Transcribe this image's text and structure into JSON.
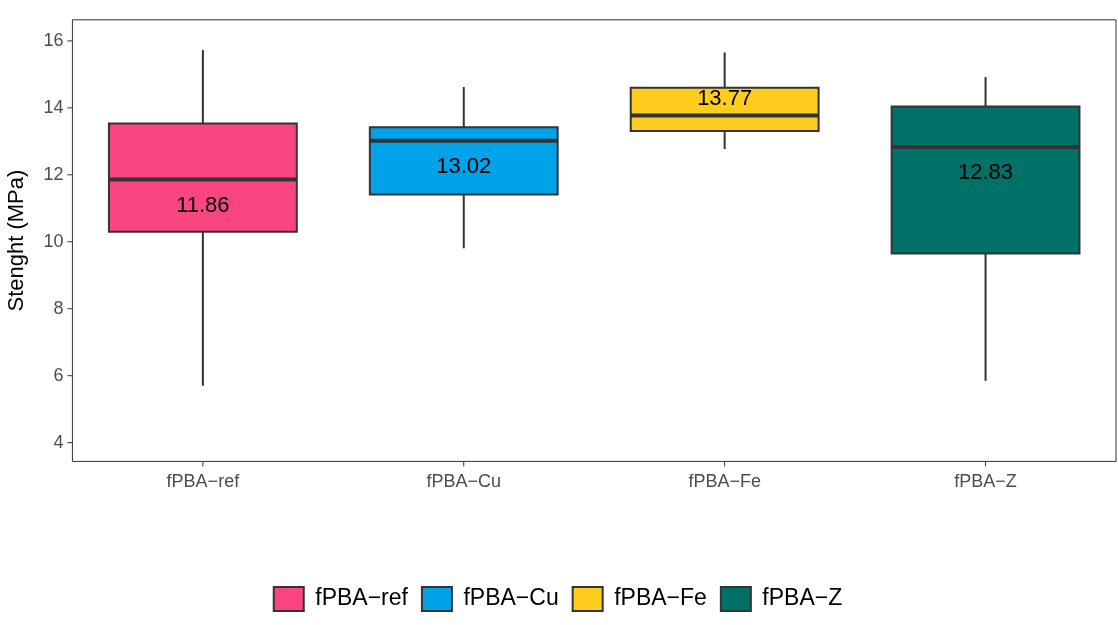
{
  "chart_data": {
    "type": "box",
    "ylabel": "Stenght (MPa)",
    "categories": [
      "fPBA−ref",
      "fPBA−Cu",
      "fPBA−Fe",
      "fPBA−Z"
    ],
    "series": [
      {
        "name": "fPBA−ref",
        "color": "#fa4680",
        "boxes": [
          {
            "low": 5.7,
            "q1": 10.3,
            "median": 11.86,
            "q3": 13.53,
            "high": 15.73
          },
          null,
          null,
          null
        ],
        "value_labels": [
          "11.86",
          null,
          null,
          null
        ]
      },
      {
        "name": "fPBA−Cu",
        "color": "#00a2e8",
        "boxes": [
          null,
          {
            "low": 9.81,
            "q1": 11.41,
            "median": 13.02,
            "q3": 13.42,
            "high": 14.62
          },
          null,
          null
        ],
        "value_labels": [
          null,
          "13.02",
          null,
          null
        ]
      },
      {
        "name": "fPBA−Fe",
        "color": "#ffcd1e",
        "boxes": [
          null,
          null,
          {
            "low": 12.77,
            "q1": 13.31,
            "median": 13.77,
            "q3": 14.6,
            "high": 15.65
          },
          null
        ],
        "value_labels": [
          null,
          null,
          "13.77",
          null
        ]
      },
      {
        "name": "fPBA−Z",
        "color": "#007166",
        "boxes": [
          null,
          null,
          null,
          {
            "low": 5.85,
            "q1": 9.65,
            "median": 12.83,
            "q3": 14.04,
            "high": 14.92
          }
        ],
        "value_labels": [
          null,
          null,
          null,
          "12.83"
        ]
      }
    ],
    "ylim": [
      3.44,
      16.63
    ],
    "yticks": [
      4,
      6,
      8,
      10,
      12,
      14,
      16
    ],
    "grid": false,
    "legend": "bottom"
  }
}
